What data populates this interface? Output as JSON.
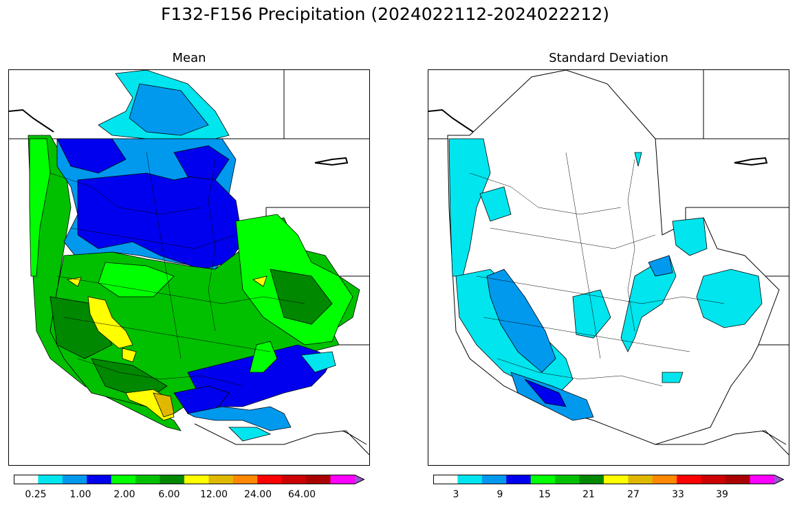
{
  "title": "F132-F156 Precipitation (2024022112-2024022212)",
  "panels": [
    {
      "title": "Mean",
      "colorbar": {
        "colors": [
          "#ffffff",
          "#00e5ee",
          "#0099ee",
          "#0000ee",
          "#00ff00",
          "#00c000",
          "#008800",
          "#ffff00",
          "#e0b800",
          "#ff8800",
          "#ff0000",
          "#cc0000",
          "#aa0000",
          "#ff00ff",
          "#9955cc"
        ],
        "tick_labels": [
          "0.25",
          "1.00",
          "2.00",
          "6.00",
          "12.00",
          "24.00",
          "64.00"
        ],
        "extend": "max"
      }
    },
    {
      "title": "Standard Deviation",
      "colorbar": {
        "colors": [
          "#ffffff",
          "#00e5ee",
          "#0099ee",
          "#0000ee",
          "#00ff00",
          "#00c000",
          "#008800",
          "#ffff00",
          "#e0b800",
          "#ff8800",
          "#ff0000",
          "#cc0000",
          "#aa0000",
          "#ff00ff",
          "#9955cc"
        ],
        "tick_labels": [
          "3",
          "9",
          "15",
          "21",
          "27",
          "33",
          "39"
        ],
        "extend": "max"
      }
    }
  ]
}
